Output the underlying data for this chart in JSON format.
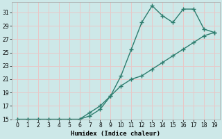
{
  "xlabel": "Humidex (Indice chaleur)",
  "x": [
    0,
    1,
    2,
    3,
    4,
    5,
    6,
    7,
    8,
    9,
    10,
    11,
    12,
    13,
    14,
    15,
    16,
    17,
    18,
    19
  ],
  "line1_y": [
    15,
    15,
    15,
    15,
    15,
    15,
    15,
    16,
    17,
    18.5,
    21.5,
    25.5,
    29.5,
    32,
    30.5,
    29.5,
    31.5,
    31.5,
    28.5,
    28
  ],
  "line2_y": [
    15,
    15,
    15,
    15,
    15,
    15,
    15,
    15.5,
    16.5,
    18.5,
    20,
    21,
    21.5,
    22.5,
    23.5,
    24.5,
    25.5,
    26.5,
    27.5,
    28
  ],
  "line_color": "#2d7d6e",
  "bg_color": "#cde8e8",
  "grid_color": "#e8c8c8",
  "ylim": [
    15,
    32
  ],
  "xlim": [
    -0.5,
    19.5
  ],
  "yticks": [
    15,
    17,
    19,
    21,
    23,
    25,
    27,
    29,
    31
  ],
  "xticks": [
    0,
    1,
    2,
    3,
    4,
    5,
    6,
    7,
    8,
    9,
    10,
    11,
    12,
    13,
    14,
    15,
    16,
    17,
    18,
    19
  ],
  "marker": "+",
  "markersize": 4,
  "linewidth": 1.0,
  "tick_fontsize": 5.5,
  "xlabel_fontsize": 6.5
}
